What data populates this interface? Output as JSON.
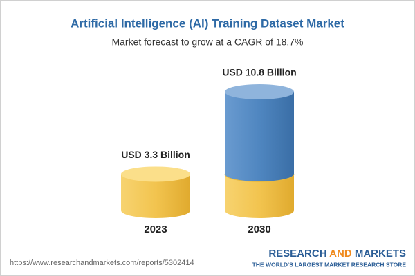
{
  "chart_data": {
    "type": "bar",
    "title": "Artificial Intelligence (AI) Training Dataset Market",
    "subtitle": "Market forecast to grow at a CAGR of 18.7%",
    "categories": [
      "2023",
      "2030"
    ],
    "values": [
      3.3,
      10.8
    ],
    "value_labels": [
      "USD 3.3 Billion",
      "USD 10.8 Billion"
    ],
    "color": "#f2c44f",
    "growth_color": "#4f86c0"
  },
  "footer": {
    "url": "https://www.researchandmarkets.com/reports/5302414",
    "brand": [
      "RESEARCH",
      "AND",
      "MARKETS"
    ],
    "tagline": "THE WORLD'S LARGEST MARKET RESEARCH STORE"
  }
}
